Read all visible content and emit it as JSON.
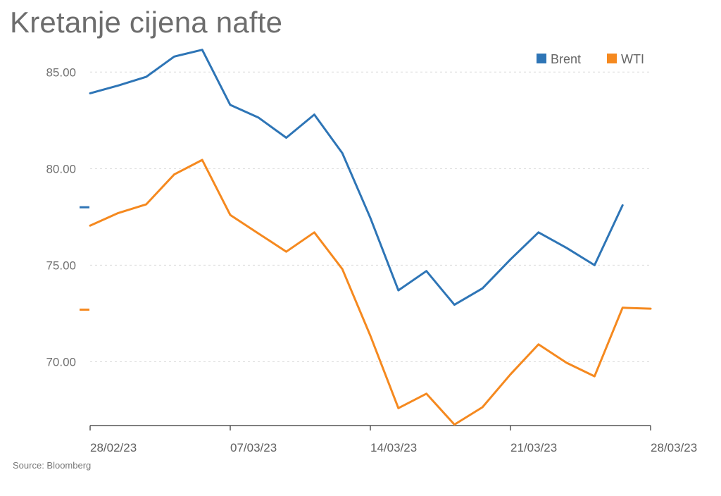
{
  "title": "Kretanje cijena nafte",
  "source": "Source: Bloomberg",
  "chart_data": {
    "type": "line",
    "title": "Kretanje cijena nafte",
    "xlabel": "",
    "ylabel": "",
    "ylim": [
      66.7,
      88.0
    ],
    "y_ticks": [
      "70.00",
      "75.00",
      "80.00",
      "85.00"
    ],
    "x_ticks": [
      "28/02/23",
      "07/03/23",
      "14/03/23",
      "21/03/23",
      "28/03/23"
    ],
    "grid": "horizontal dashed",
    "legend_position": "top-right",
    "x": [
      "28/02/23",
      "01/03/23",
      "02/03/23",
      "03/03/23",
      "06/03/23",
      "07/03/23",
      "08/03/23",
      "09/03/23",
      "10/03/23",
      "13/03/23",
      "14/03/23",
      "15/03/23",
      "16/03/23",
      "17/03/23",
      "20/03/23",
      "21/03/23",
      "22/03/23",
      "23/03/23",
      "24/03/23",
      "27/03/23",
      "28/03/23"
    ],
    "series": [
      {
        "name": "Brent",
        "color": "#2e75b6",
        "values": [
          83.9,
          84.3,
          84.75,
          85.8,
          86.15,
          83.3,
          82.65,
          81.6,
          82.8,
          80.8,
          77.45,
          73.7,
          74.7,
          72.95,
          73.8,
          75.3,
          76.7,
          75.9,
          75.0,
          78.1,
          null
        ],
        "last_value_marker": 78.0
      },
      {
        "name": "WTI",
        "color": "#f5891f",
        "values": [
          77.05,
          77.7,
          78.15,
          79.7,
          80.45,
          77.6,
          76.65,
          75.7,
          76.7,
          74.8,
          71.35,
          67.6,
          68.35,
          66.75,
          67.65,
          69.35,
          70.9,
          69.95,
          69.25,
          72.8,
          72.75
        ],
        "last_value_marker": 72.7
      }
    ]
  }
}
